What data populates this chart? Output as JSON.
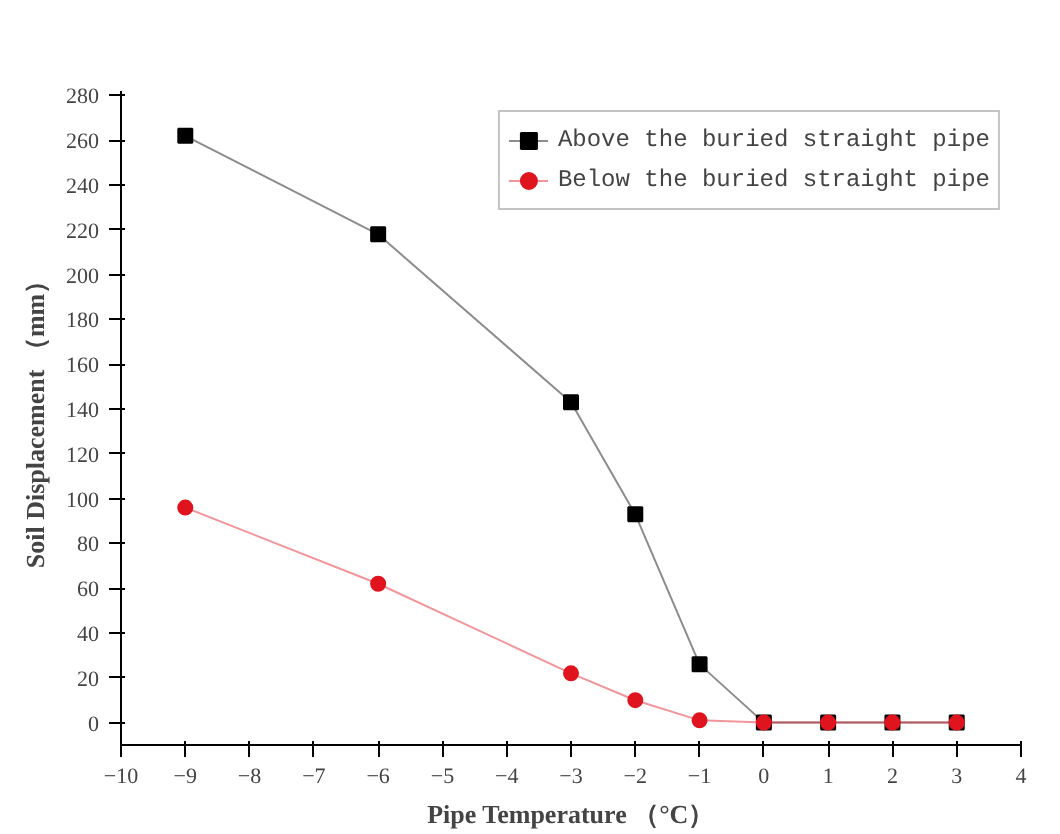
{
  "chart_data": {
    "type": "line",
    "xlabel": "Pipe Temperature （°C）",
    "ylabel": "Soil Displacement （mm）",
    "x": [
      -9,
      -6,
      -3,
      -2,
      -1,
      0,
      1,
      2,
      3
    ],
    "series": [
      {
        "name": "Above the buried straight pipe",
        "color": "#000000",
        "marker": "square",
        "values": [
          262,
          218,
          143,
          93,
          26,
          0,
          0,
          0,
          0
        ]
      },
      {
        "name": "Below the buried straight pipe",
        "color": "#e0141e",
        "marker": "circle",
        "values": [
          96,
          62,
          22,
          10,
          1,
          0,
          0,
          0,
          0
        ]
      }
    ],
    "xlim": [
      -10,
      4
    ],
    "xticks": [
      -10,
      -9,
      -8,
      -7,
      -6,
      -5,
      -4,
      -3,
      -2,
      -1,
      0,
      1,
      2,
      3,
      4
    ],
    "ylim": [
      -10,
      282
    ],
    "yticks": [
      0,
      20,
      40,
      60,
      80,
      100,
      120,
      140,
      160,
      180,
      200,
      220,
      240,
      260,
      280
    ],
    "grid": false,
    "legend": "top right",
    "line_style": "solid"
  }
}
